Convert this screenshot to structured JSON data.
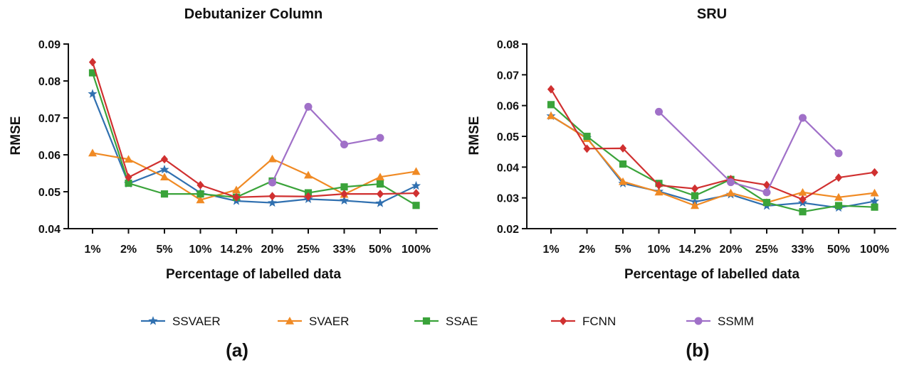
{
  "colors": {
    "SSVAER": "#3070b0",
    "SVAER": "#f08a24",
    "SSAE": "#3aa33a",
    "FCNN": "#d03030",
    "SSMM": "#a070c8"
  },
  "legend": [
    {
      "name": "SSVAER",
      "marker": "star"
    },
    {
      "name": "SVAER",
      "marker": "triangle"
    },
    {
      "name": "SSAE",
      "marker": "square"
    },
    {
      "name": "FCNN",
      "marker": "diamond"
    },
    {
      "name": "SSMM",
      "marker": "circle"
    }
  ],
  "panel_labels": [
    "(a)",
    "(b)"
  ],
  "chart_data": [
    {
      "type": "line",
      "title": "Debutanizer Column",
      "xlabel": "Percentage of labelled data",
      "ylabel": "RMSE",
      "categories": [
        "1%",
        "2%",
        "5%",
        "10%",
        "14.2%",
        "20%",
        "25%",
        "33%",
        "50%",
        "100%"
      ],
      "ylim": [
        0.04,
        0.09
      ],
      "yticks": [
        "0.04",
        "0.05",
        "0.06",
        "0.07",
        "0.08",
        "0.09"
      ],
      "series": [
        {
          "name": "SSVAER",
          "values": [
            0.0765,
            0.0522,
            0.056,
            0.0497,
            0.0475,
            0.047,
            0.048,
            0.0476,
            0.0469,
            0.0516
          ]
        },
        {
          "name": "SVAER",
          "values": [
            0.0605,
            0.0588,
            0.054,
            0.0478,
            0.0505,
            0.0589,
            0.0545,
            0.0493,
            0.054,
            0.0555
          ]
        },
        {
          "name": "SSAE",
          "values": [
            0.0822,
            0.0523,
            0.0494,
            0.0494,
            0.0485,
            0.0529,
            0.0497,
            0.0513,
            0.0521,
            0.0463
          ]
        },
        {
          "name": "FCNN",
          "values": [
            0.0851,
            0.0539,
            0.0588,
            0.0518,
            0.0485,
            0.0488,
            0.0487,
            0.0494,
            0.0494,
            0.0496
          ]
        },
        {
          "name": "SSMM",
          "values": [
            null,
            null,
            null,
            null,
            null,
            0.0525,
            0.073,
            0.0628,
            0.0646,
            null
          ]
        }
      ]
    },
    {
      "type": "line",
      "title": "SRU",
      "xlabel": "Percentage of labelled data",
      "ylabel": "RMSE",
      "categories": [
        "1%",
        "2%",
        "5%",
        "10%",
        "14.2%",
        "20%",
        "25%",
        "33%",
        "50%",
        "100%"
      ],
      "ylim": [
        0.02,
        0.08
      ],
      "yticks": [
        "0.02",
        "0.03",
        "0.04",
        "0.05",
        "0.06",
        "0.07",
        "0.08"
      ],
      "series": [
        {
          "name": "SSVAER",
          "values": [
            0.0566,
            0.0495,
            0.0347,
            0.0321,
            0.0287,
            0.0311,
            0.0274,
            0.0284,
            0.0268,
            0.0289
          ]
        },
        {
          "name": "SVAER",
          "values": [
            0.0567,
            0.0493,
            0.0353,
            0.0319,
            0.0275,
            0.0316,
            0.0285,
            0.0318,
            0.0302,
            0.0316
          ]
        },
        {
          "name": "SSAE",
          "values": [
            0.0603,
            0.05,
            0.041,
            0.0347,
            0.0307,
            0.036,
            0.0285,
            0.0255,
            0.0275,
            0.027
          ]
        },
        {
          "name": "FCNN",
          "values": [
            0.0653,
            0.046,
            0.0461,
            0.0341,
            0.033,
            0.0361,
            0.0342,
            0.0295,
            0.0366,
            0.0383
          ]
        },
        {
          "name": "SSMM",
          "values": [
            null,
            null,
            null,
            0.058,
            null,
            0.0351,
            0.0318,
            0.056,
            0.0445,
            null
          ]
        }
      ]
    }
  ]
}
